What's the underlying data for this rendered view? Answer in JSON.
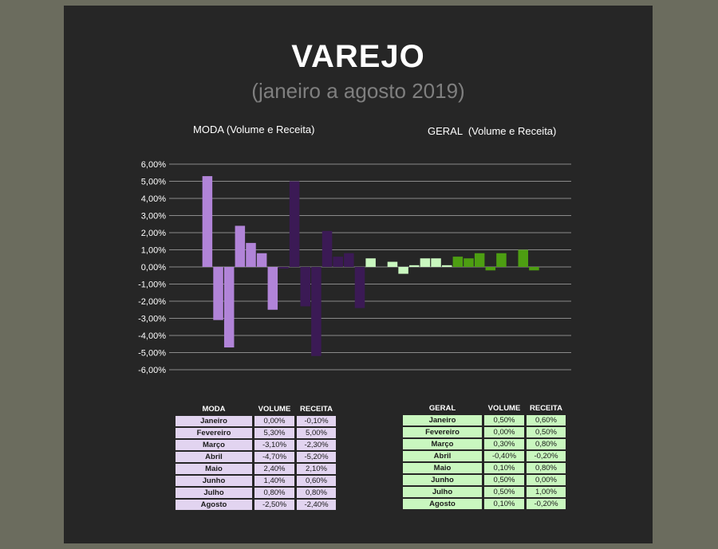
{
  "title": "VAREJO",
  "subtitle": "(janeiro a agosto 2019)",
  "colors": {
    "moda_volume": "#b184d8",
    "moda_receita": "#3b1a55",
    "geral_volume": "#c9f7bf",
    "geral_receita": "#4d9e12"
  },
  "chart_data": {
    "type": "bar",
    "left_label": "MODA (Volume e Receita)",
    "right_label": "GERAL  (Volume e Receita)",
    "ylim": [
      -6,
      6
    ],
    "ytick_step": 1,
    "grid": true,
    "yticks": [
      "6,00%",
      "5,00%",
      "4,00%",
      "3,00%",
      "2,00%",
      "1,00%",
      "0,00%",
      "-1,00%",
      "-2,00%",
      "-3,00%",
      "-4,00%",
      "-5,00%",
      "-6,00%"
    ],
    "categories": [
      "Janeiro",
      "Fevereiro",
      "Março",
      "Abril",
      "Maio",
      "Junho",
      "Julho",
      "Agosto"
    ],
    "series": [
      {
        "group": "MODA",
        "name": "VOLUME",
        "values": [
          0.0,
          5.3,
          -3.1,
          -4.7,
          2.4,
          1.4,
          0.8,
          -2.5
        ]
      },
      {
        "group": "MODA",
        "name": "RECEITA",
        "values": [
          -0.1,
          5.0,
          -2.3,
          -5.2,
          2.1,
          0.6,
          0.8,
          -2.4
        ]
      },
      {
        "group": "GERAL",
        "name": "VOLUME",
        "values": [
          0.5,
          0.0,
          0.3,
          -0.4,
          0.1,
          0.5,
          0.5,
          0.1
        ]
      },
      {
        "group": "GERAL",
        "name": "RECEITA",
        "values": [
          0.6,
          0.5,
          0.8,
          -0.2,
          0.8,
          0.0,
          1.0,
          -0.2
        ]
      }
    ]
  },
  "moda_table": {
    "headers": [
      "MODA",
      "VOLUME",
      "RECEITA"
    ],
    "rows": [
      [
        "Janeiro",
        "0,00%",
        "-0,10%"
      ],
      [
        "Fevereiro",
        "5,30%",
        "5,00%"
      ],
      [
        "Março",
        "-3,10%",
        "-2,30%"
      ],
      [
        "Abril",
        "-4,70%",
        "-5,20%"
      ],
      [
        "Maio",
        "2,40%",
        "2,10%"
      ],
      [
        "Junho",
        "1,40%",
        "0,60%"
      ],
      [
        "Julho",
        "0,80%",
        "0,80%"
      ],
      [
        "Agosto",
        "-2,50%",
        "-2,40%"
      ]
    ]
  },
  "geral_table": {
    "headers": [
      "GERAL",
      "VOLUME",
      "RECEITA"
    ],
    "rows": [
      [
        "Janeiro",
        "0,50%",
        "0,60%"
      ],
      [
        "Fevereiro",
        "0,00%",
        "0,50%"
      ],
      [
        "Março",
        "0,30%",
        "0,80%"
      ],
      [
        "Abril",
        "-0,40%",
        "-0,20%"
      ],
      [
        "Maio",
        "0,10%",
        "0,80%"
      ],
      [
        "Junho",
        "0,50%",
        "0,00%"
      ],
      [
        "Julho",
        "0,50%",
        "1,00%"
      ],
      [
        "Agosto",
        "0,10%",
        "-0,20%"
      ]
    ]
  }
}
